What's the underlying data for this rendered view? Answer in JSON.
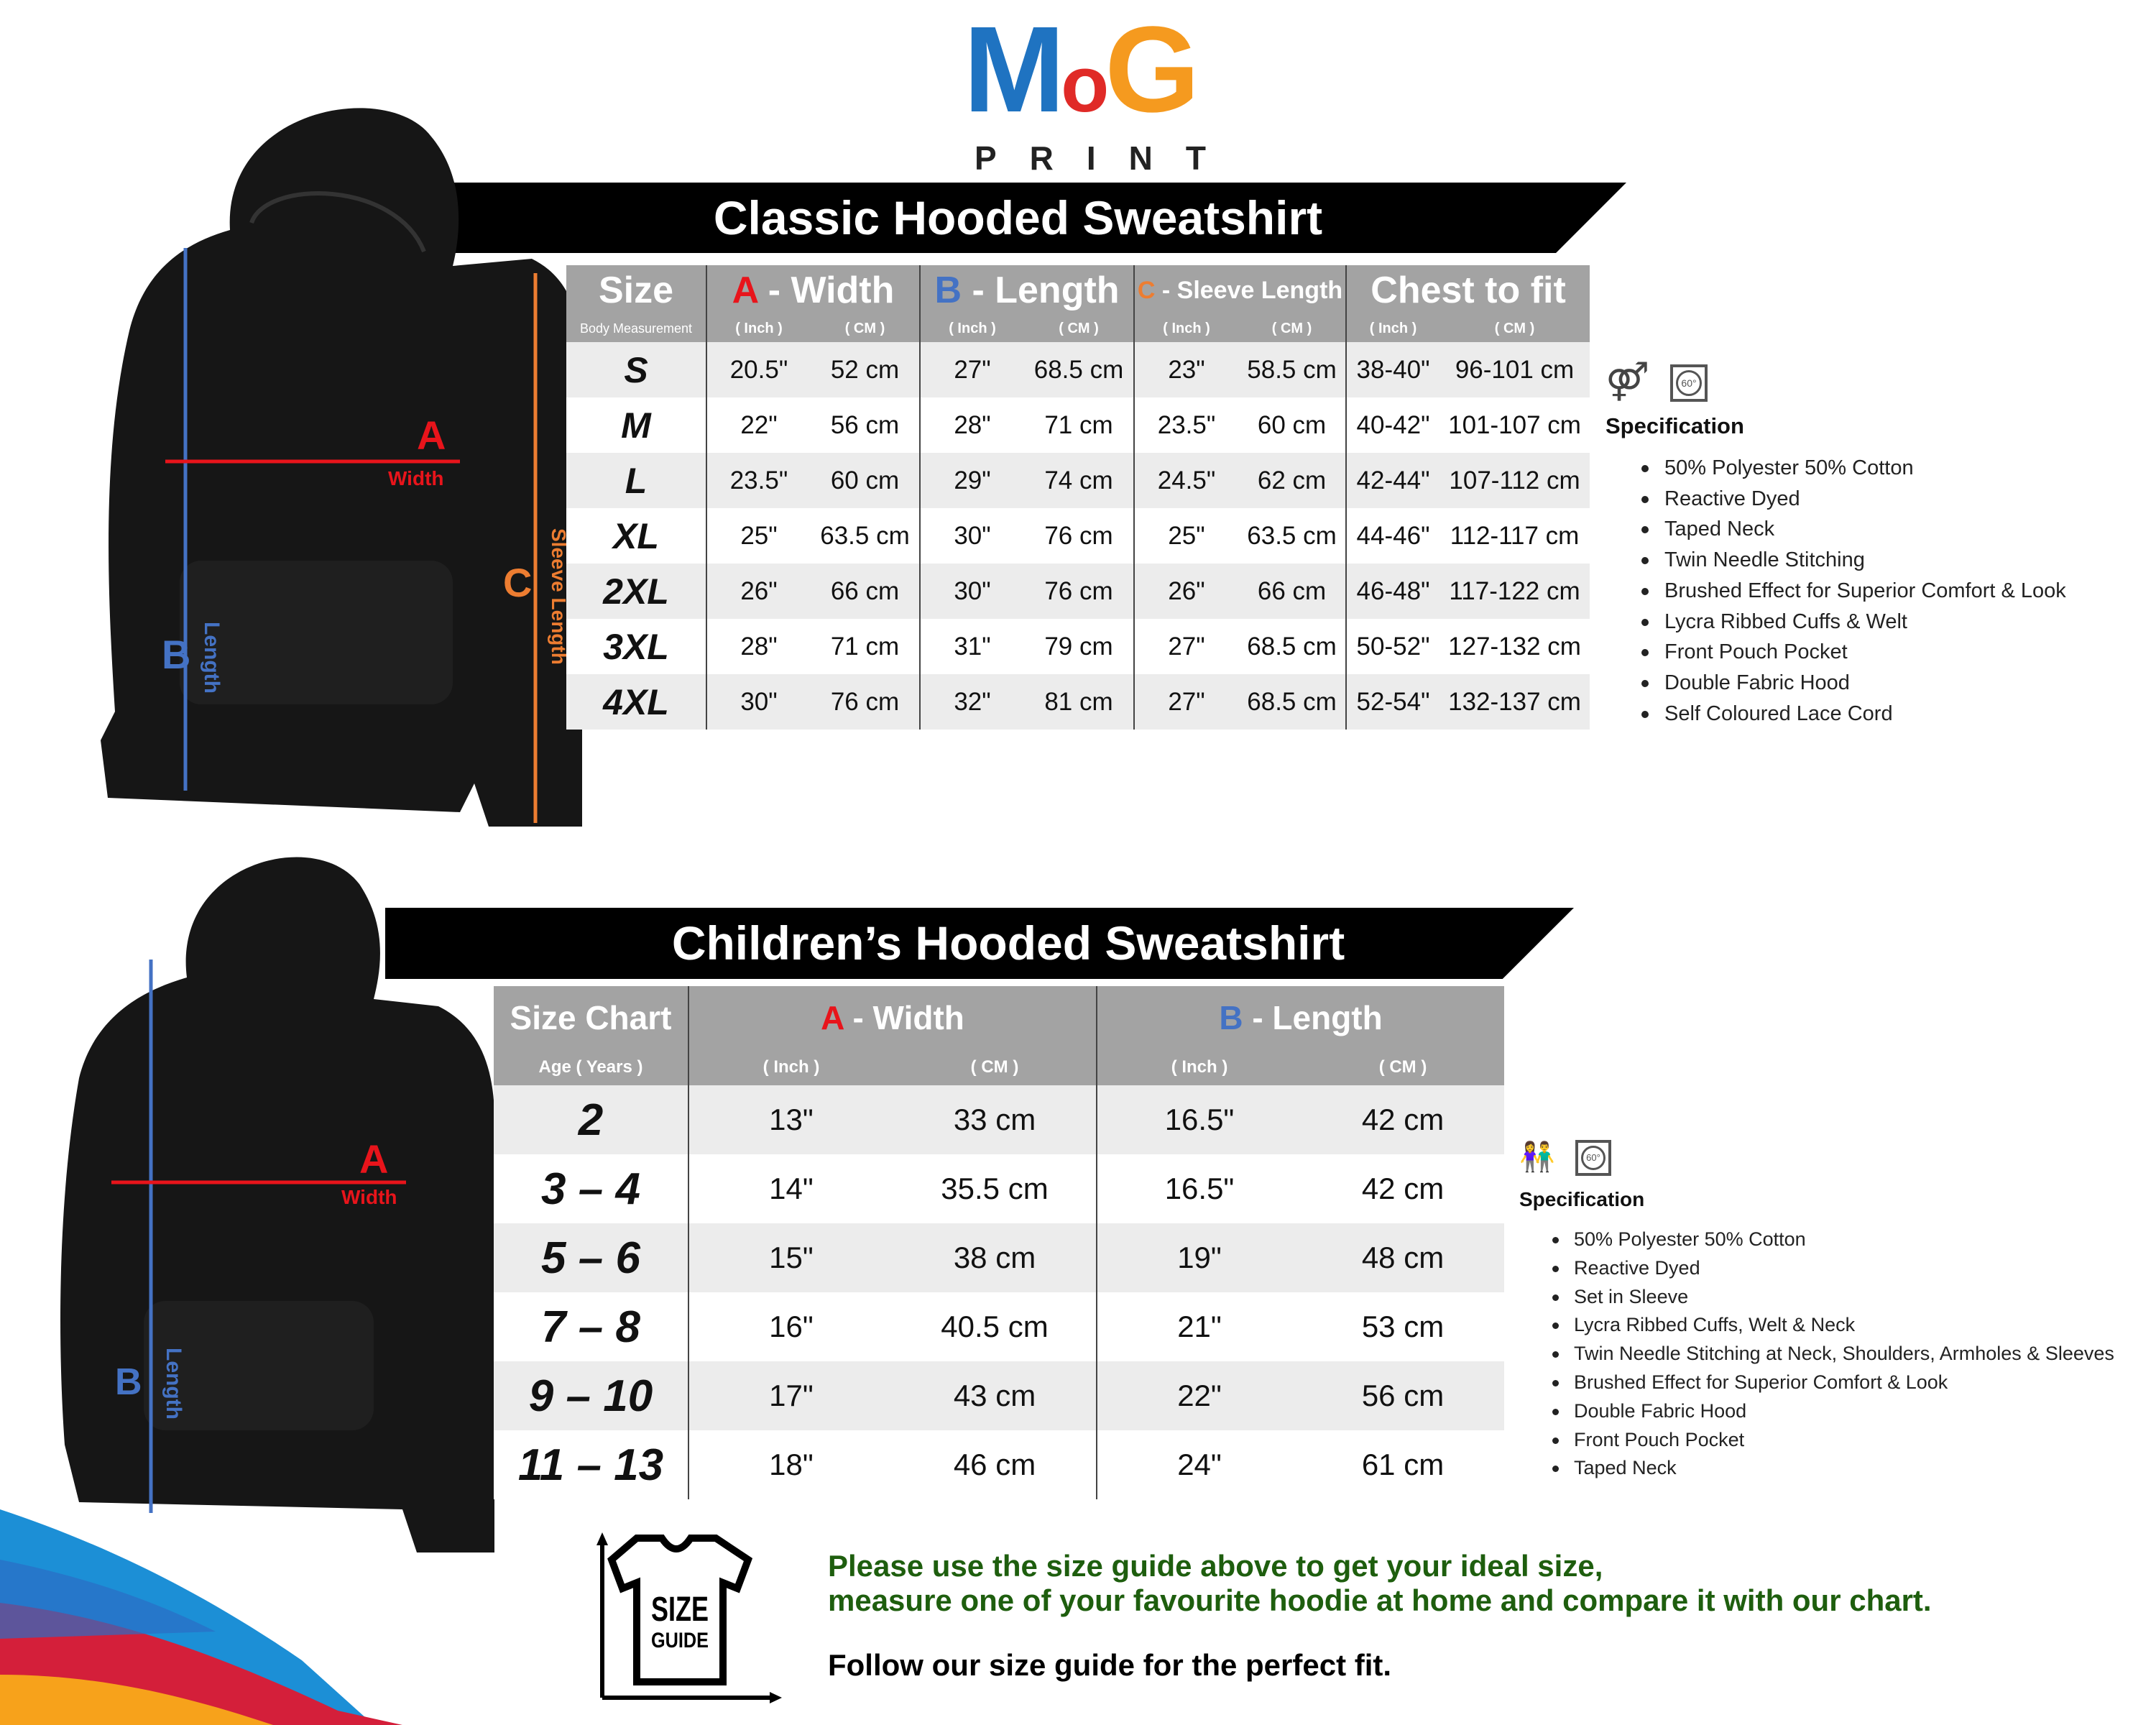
{
  "logo": {
    "letters": "MoG",
    "sub": "PRINT",
    "colors": {
      "M": "#1f73c1",
      "o": "#e02a27",
      "G": "#f59a1f",
      "sub": "#222222"
    }
  },
  "adult": {
    "title": "Classic Hooded Sweatshirt",
    "headers": {
      "size": "Size",
      "size_sub": "Body Measurement",
      "a_letter": "A",
      "a_label": " - Width",
      "b_letter": "B",
      "b_label": " - Length",
      "c_letter": "C",
      "c_label": " - Sleeve Length",
      "chest": "Chest to fit",
      "inch": "( Inch )",
      "cm": "( CM )"
    },
    "rows": [
      [
        "S",
        "20.5\"",
        "52 cm",
        "27\"",
        "68.5 cm",
        "23\"",
        "58.5 cm",
        "38-40\"",
        "96-101 cm"
      ],
      [
        "M",
        "22\"",
        "56 cm",
        "28\"",
        "71 cm",
        "23.5\"",
        "60 cm",
        "40-42\"",
        "101-107 cm"
      ],
      [
        "L",
        "23.5\"",
        "60 cm",
        "29\"",
        "74 cm",
        "24.5\"",
        "62 cm",
        "42-44\"",
        "107-112 cm"
      ],
      [
        "XL",
        "25\"",
        "63.5 cm",
        "30\"",
        "76 cm",
        "25\"",
        "63.5 cm",
        "44-46\"",
        "112-117 cm"
      ],
      [
        "2XL",
        "26\"",
        "66 cm",
        "30\"",
        "76 cm",
        "26\"",
        "66 cm",
        "46-48\"",
        "117-122 cm"
      ],
      [
        "3XL",
        "28\"",
        "71 cm",
        "31\"",
        "79 cm",
        "27\"",
        "68.5 cm",
        "50-52\"",
        "127-132 cm"
      ],
      [
        "4XL",
        "30\"",
        "76 cm",
        "32\"",
        "81 cm",
        "27\"",
        "68.5 cm",
        "52-54\"",
        "132-137 cm"
      ]
    ],
    "diagram": {
      "a": "A",
      "a_label": "Width",
      "b": "B",
      "b_label": "Length",
      "c": "C",
      "c_label": "Sleeve Length"
    },
    "icons": [
      "unisex-icon",
      "wash-60-icon"
    ],
    "wash_temp": "60°",
    "spec_title": "Specification",
    "spec": [
      "50% Polyester 50% Cotton",
      "Reactive Dyed",
      "Taped Neck",
      "Twin Needle Stitching",
      "Brushed Effect for Superior Comfort & Look",
      "Lycra Ribbed Cuffs & Welt",
      "Front Pouch Pocket",
      "Double Fabric Hood",
      "Self Coloured Lace Cord"
    ]
  },
  "kids": {
    "title": "Children’s Hooded Sweatshirt",
    "headers": {
      "size": "Size Chart",
      "size_sub": "Age ( Years )",
      "a_letter": "A",
      "a_label": " - Width",
      "b_letter": "B",
      "b_label": " - Length",
      "inch": "( Inch )",
      "cm": "( CM )"
    },
    "rows": [
      [
        "2",
        "13\"",
        "33 cm",
        "16.5\"",
        "42 cm"
      ],
      [
        "3 – 4",
        "14\"",
        "35.5 cm",
        "16.5\"",
        "42 cm"
      ],
      [
        "5 – 6",
        "15\"",
        "38 cm",
        "19\"",
        "48 cm"
      ],
      [
        "7 – 8",
        "16\"",
        "40.5 cm",
        "21\"",
        "53 cm"
      ],
      [
        "9 – 10",
        "17\"",
        "43 cm",
        "22\"",
        "56 cm"
      ],
      [
        "11 – 13",
        "18\"",
        "46 cm",
        "24\"",
        "61 cm"
      ]
    ],
    "diagram": {
      "a": "A",
      "a_label": "Width",
      "b": "B",
      "b_label": "Length"
    },
    "icons": [
      "kids-icon",
      "wash-60-icon"
    ],
    "wash_temp": "60°",
    "spec_title": "Specification",
    "spec": [
      "50% Polyester 50% Cotton",
      "Reactive Dyed",
      "Set in Sleeve",
      "Lycra Ribbed Cuffs, Welt & Neck",
      "Twin Needle Stitching at Neck, Shoulders, Armholes & Sleeves",
      "Brushed Effect for Superior Comfort & Look",
      "Double Fabric Hood",
      "Front Pouch Pocket",
      "Taped Neck"
    ]
  },
  "footer": {
    "badge_line1": "SIZE",
    "badge_line2": "GUIDE",
    "line1": "Please use the size guide above to get your ideal size,",
    "line2": "measure one of your favourite hoodie at home and compare it with our chart.",
    "line3": "Follow our size guide for the perfect fit.",
    "green": "#1e5e0e"
  },
  "colors": {
    "a": "#e8141b",
    "b": "#4472c4",
    "c": "#ed7d31",
    "header_bg": "#a3a3a3",
    "row_alt": "#ececec"
  }
}
